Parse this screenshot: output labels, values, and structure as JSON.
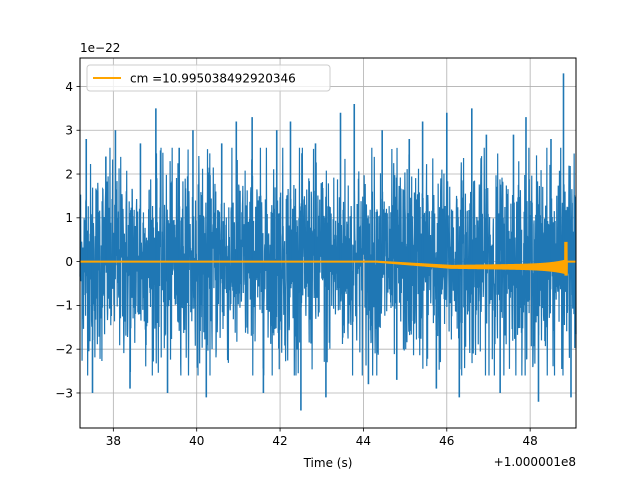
{
  "chart_data": {
    "type": "line",
    "title": "",
    "xlabel": "Time (s)",
    "ylabel": "",
    "x_offset_text": "+1.000001e8",
    "y_scale_text": "1e−22",
    "xlim": [
      37.2,
      49.1
    ],
    "ylim": [
      -3.8,
      4.65
    ],
    "x_ticks": [
      38,
      40,
      42,
      44,
      46,
      48
    ],
    "x_tick_labels": [
      "38",
      "40",
      "42",
      "44",
      "46",
      "48"
    ],
    "y_ticks": [
      -3,
      -2,
      -1,
      0,
      1,
      2,
      3,
      4
    ],
    "y_tick_labels": [
      "−3",
      "−2",
      "−1",
      "0",
      "1",
      "2",
      "3",
      "4"
    ],
    "grid": true,
    "legend_position": "upper-left",
    "colors": {
      "noise": "#1f77b4",
      "signal": "#ffa500",
      "grid": "#b0b0b0"
    },
    "series": [
      {
        "name": "",
        "kind": "noise",
        "x_range": [
          37.2,
          49.1
        ],
        "envelope_typical": [
          -2.0,
          2.0
        ],
        "spikes_x": [
          37.35,
          37.5,
          37.82,
          38.05,
          38.4,
          38.65,
          39.02,
          39.3,
          39.58,
          39.91,
          40.23,
          40.6,
          40.95,
          41.33,
          41.6,
          41.92,
          42.25,
          42.5,
          42.85,
          43.1,
          43.45,
          43.78,
          44.12,
          44.45,
          44.8,
          45.1,
          45.42,
          45.75,
          46.0,
          46.3,
          46.6,
          46.95,
          47.28,
          47.6,
          47.9,
          48.2,
          48.5,
          48.8,
          48.98
        ],
        "spikes_y": [
          2.8,
          -3.0,
          2.4,
          3.0,
          -2.9,
          2.7,
          3.5,
          -3.0,
          2.6,
          3.0,
          -3.1,
          2.7,
          3.2,
          3.3,
          -3.0,
          3.0,
          3.2,
          -3.4,
          2.7,
          -3.1,
          3.4,
          3.6,
          -2.8,
          3.0,
          -2.7,
          2.8,
          3.2,
          -2.9,
          3.4,
          -3.1,
          3.5,
          2.9,
          -3.0,
          2.9,
          3.3,
          -3.2,
          2.8,
          4.3,
          -3.1
        ]
      },
      {
        "name": "cm =10.995038492920346",
        "kind": "signal",
        "x_range": [
          37.2,
          49.1
        ],
        "chirp_start": 44.3,
        "merger_time": 48.84,
        "peak_positive": 0.45,
        "peak_negative": -0.32,
        "offset_before_merger": -0.12
      }
    ]
  }
}
